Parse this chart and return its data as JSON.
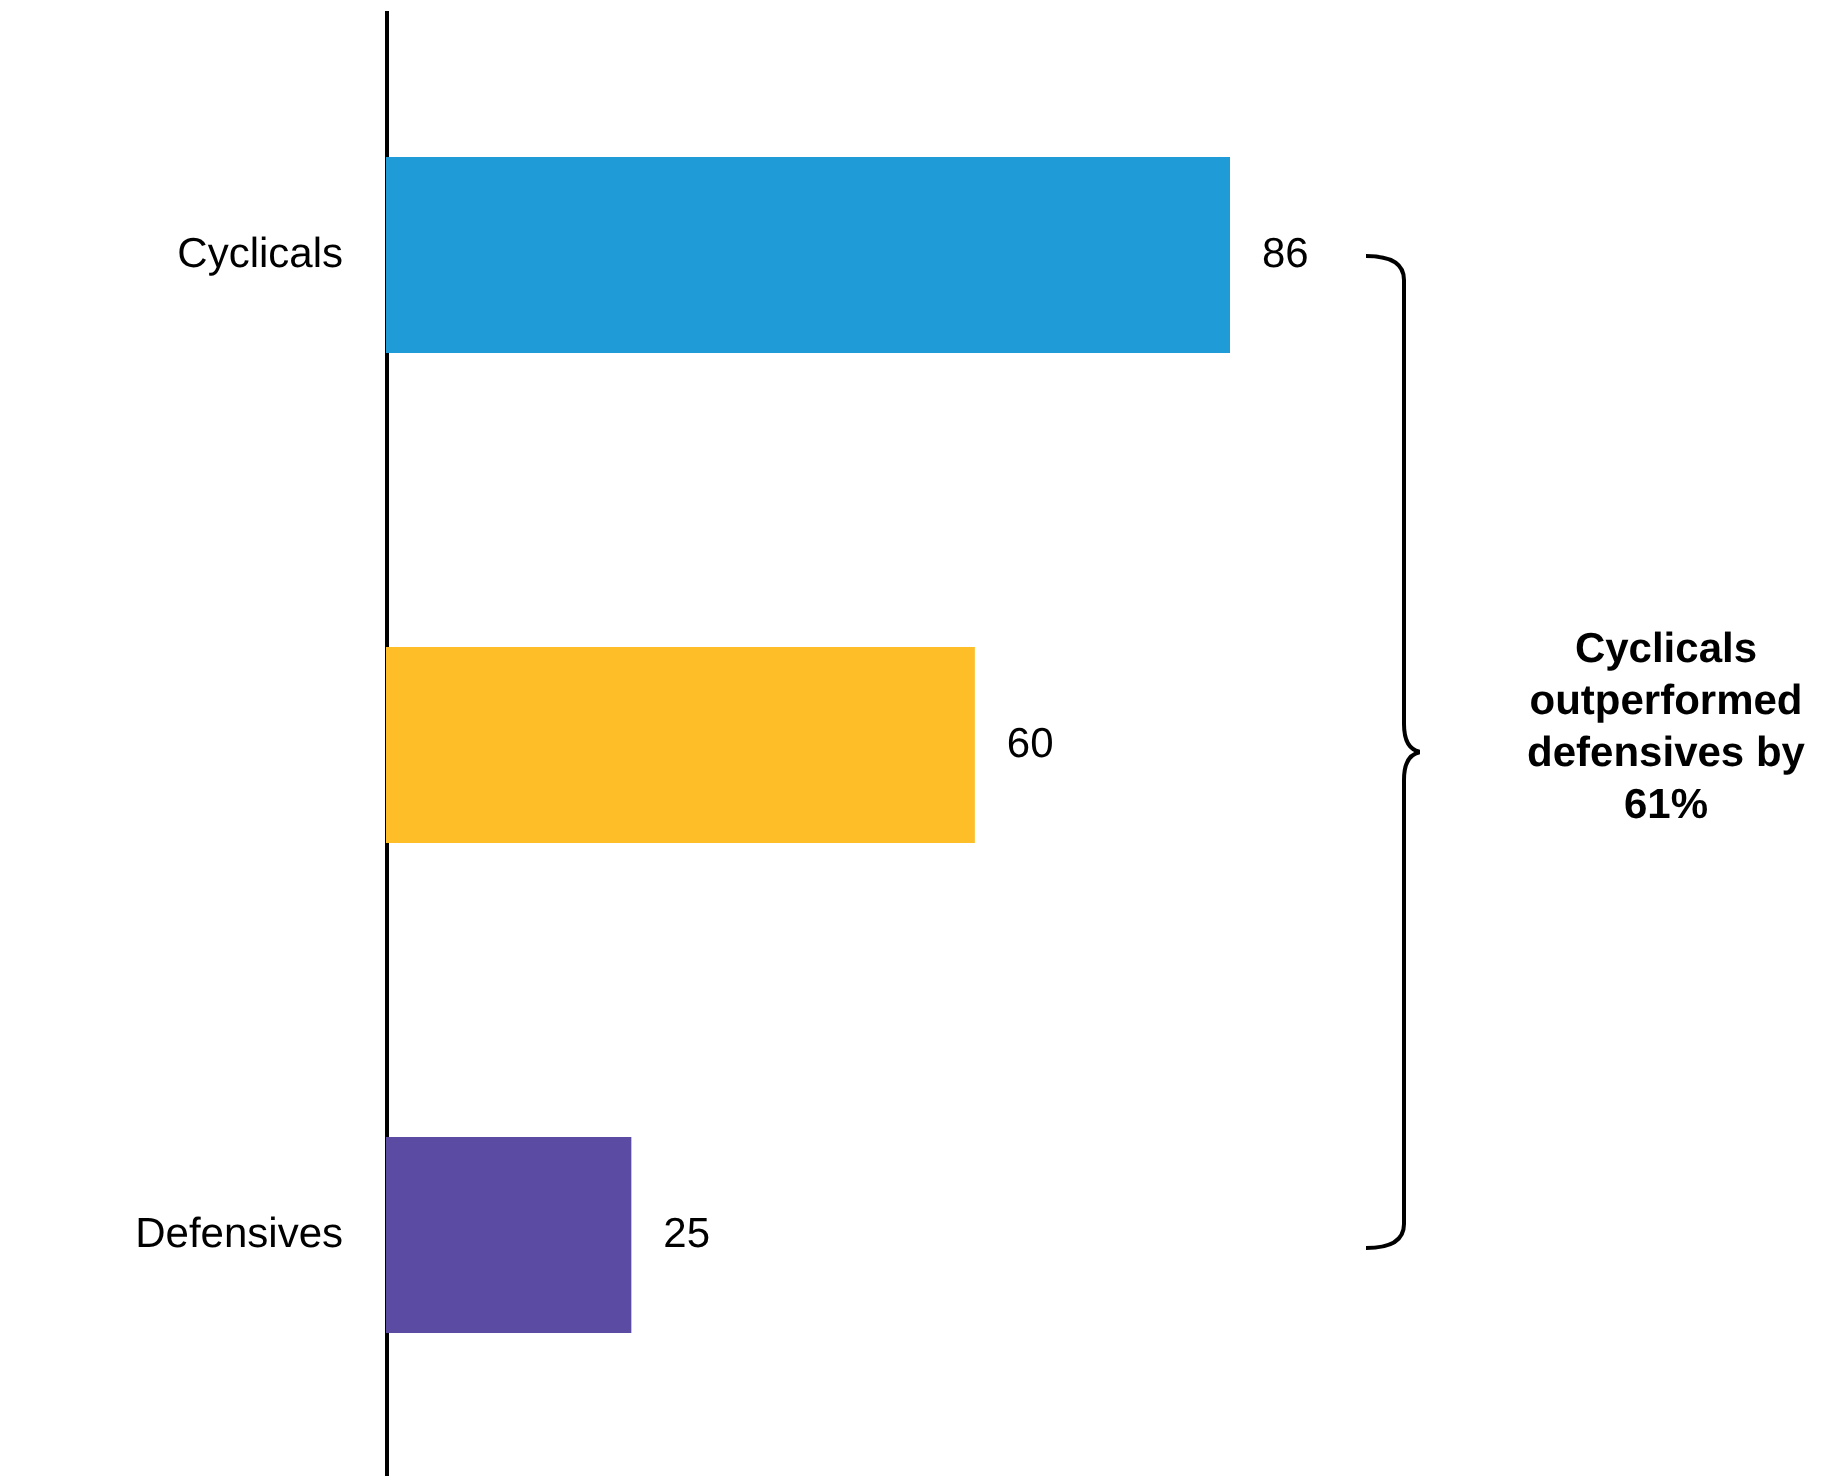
{
  "chart_data": {
    "type": "bar",
    "orientation": "horizontal",
    "categories": [
      "Cyclicals",
      null,
      "Defensives"
    ],
    "values": [
      86,
      60,
      25
    ],
    "colors": [
      "#1f9bd7",
      "#fdbe27",
      "#5b4ba3"
    ],
    "data_labels": true,
    "tick_labels": "y",
    "annotations": [
      "Cyclicals outperformed defensives by 61%"
    ]
  }
}
